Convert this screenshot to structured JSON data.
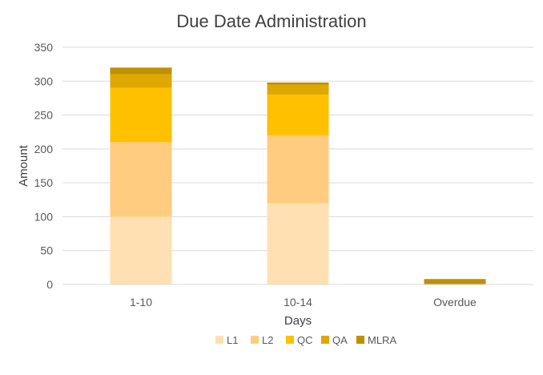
{
  "chart_data": {
    "type": "stacked-bar",
    "title": "Due Date Administration",
    "xlabel": "Days",
    "ylabel": "Amount",
    "ylim": [
      0,
      350
    ],
    "yticks": [
      0,
      50,
      100,
      150,
      200,
      250,
      300,
      350
    ],
    "grid": true,
    "legend_position": "bottom",
    "categories": [
      "1-10",
      "10-14",
      "Overdue"
    ],
    "series": [
      {
        "name": "L1",
        "color": "#FFE0B2",
        "values": [
          100,
          120,
          0
        ]
      },
      {
        "name": "L2",
        "color": "#FFCC80",
        "values": [
          110,
          100,
          0
        ]
      },
      {
        "name": "QC",
        "color": "#FFC000",
        "values": [
          80,
          60,
          0
        ]
      },
      {
        "name": "QA",
        "color": "#DFA800",
        "values": [
          20,
          15,
          0
        ]
      },
      {
        "name": "MLRA",
        "color": "#BF9000",
        "values": [
          10,
          3,
          8
        ]
      }
    ]
  }
}
